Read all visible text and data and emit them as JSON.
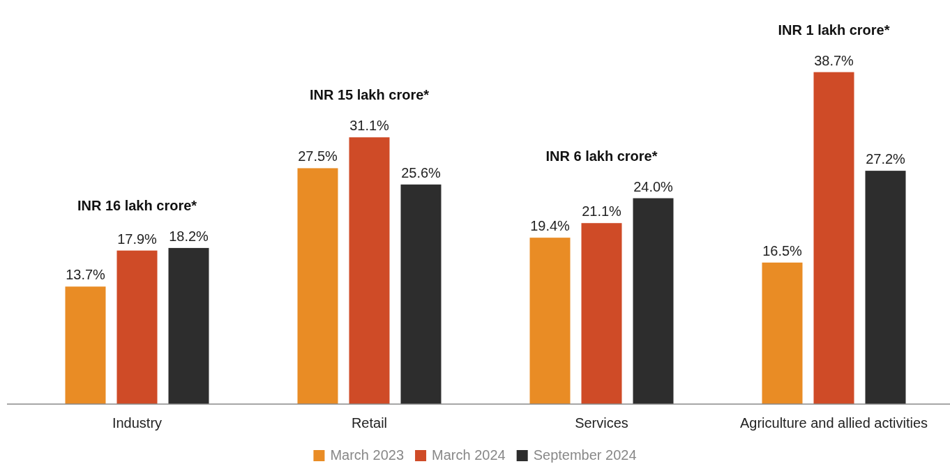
{
  "chart_data": {
    "type": "bar",
    "categories": [
      "Industry",
      "Retail",
      "Services",
      "Agriculture and allied activities"
    ],
    "series": [
      {
        "name": "March 2023",
        "color": "#e98c25",
        "values": [
          13.7,
          27.5,
          19.4,
          16.5
        ],
        "value_labels": [
          "13.7%",
          "27.5%",
          "19.4%",
          "16.5%"
        ]
      },
      {
        "name": "March 2024",
        "color": "#cf4b27",
        "values": [
          17.9,
          31.1,
          21.1,
          38.7
        ],
        "value_labels": [
          "17.9%",
          "31.1%",
          "21.1%",
          "38.7%"
        ]
      },
      {
        "name": "September 2024",
        "color": "#2d2d2d",
        "values": [
          18.2,
          25.6,
          24.0,
          27.2
        ],
        "value_labels": [
          "18.2%",
          "25.6%",
          "24.0%",
          "27.2%"
        ]
      }
    ],
    "legend": "bottom",
    "annotations": [
      "INR 16 lakh crore*",
      "INR 15 lakh crore*",
      "INR 6 lakh crore*",
      "INR 1 lakh crore*"
    ]
  }
}
